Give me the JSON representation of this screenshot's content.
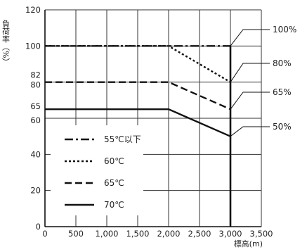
{
  "chart_data": {
    "type": "line",
    "ylabel": "負荷率（%）",
    "xlabel": "標高(m)",
    "xlim": [
      0,
      3500
    ],
    "ylim": [
      0,
      120
    ],
    "grid": true,
    "x_ticks": [
      "0",
      "500",
      "1,000",
      "1,500",
      "2,000",
      "2,500",
      "3,000",
      "3,500"
    ],
    "y_ticks": [
      "0",
      "20",
      "40",
      "60",
      "65",
      "80",
      "82",
      "100",
      "120"
    ],
    "series": [
      {
        "name": "55℃以下",
        "dash": "dashdot",
        "points": [
          [
            0,
            100
          ],
          [
            3000,
            100
          ]
        ]
      },
      {
        "name": "60℃",
        "dash": "dotted",
        "points": [
          [
            0,
            100
          ],
          [
            2000,
            100
          ],
          [
            3000,
            80
          ]
        ]
      },
      {
        "name": "65℃",
        "dash": "dashed",
        "points": [
          [
            0,
            80
          ],
          [
            2000,
            80
          ],
          [
            3000,
            65
          ]
        ]
      },
      {
        "name": "70℃",
        "dash": "solid",
        "points": [
          [
            0,
            65
          ],
          [
            2000,
            65
          ],
          [
            3000,
            50
          ]
        ]
      }
    ],
    "vertical_limit_x": 3000,
    "callouts": [
      {
        "label": "100%",
        "at": [
          3000,
          100
        ]
      },
      {
        "label": "80%",
        "at": [
          3000,
          80
        ]
      },
      {
        "label": "65%",
        "at": [
          3000,
          65
        ]
      },
      {
        "label": "50%",
        "at": [
          3000,
          50
        ]
      }
    ],
    "legend_position": "lower-left"
  }
}
